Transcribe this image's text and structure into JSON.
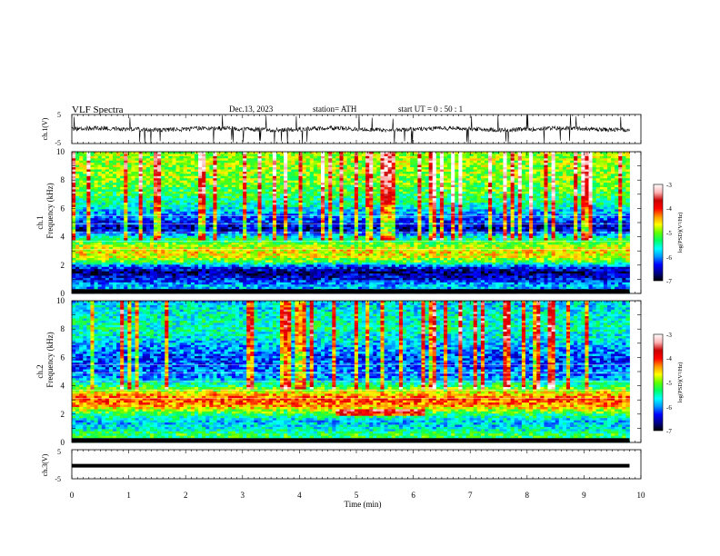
{
  "header": {
    "title": "VLF  Spectra",
    "date": "Dec.13, 2023",
    "station": "station= ATH",
    "start": "start  UT  =    0  : 50 : 1"
  },
  "colors": {
    "colormap": [
      "#000000",
      "#00008c",
      "#0000ff",
      "#0096ff",
      "#00ffff",
      "#00ff64",
      "#64ff00",
      "#ffff00",
      "#ff9600",
      "#ff0000",
      "#c80000",
      "#ffb4b4",
      "#ffffff"
    ],
    "trace": "#000000",
    "frame": "#000000"
  },
  "chart_data": [
    {
      "type": "line",
      "ylabel": "ch.1(V)",
      "xlim": [
        0,
        10
      ],
      "ylim": [
        -5,
        5
      ],
      "yticks": [
        "5",
        "-5"
      ],
      "trace_end_min": 9.8,
      "baseline": 0,
      "noise_amplitude": 1.5,
      "spike_amplitude": 4.5
    },
    {
      "type": "heatmap",
      "ylabel": "Frequency  (kHz)",
      "channel": "ch.1",
      "xlim": [
        0,
        10
      ],
      "ylim": [
        0,
        10
      ],
      "yticks": [
        "0",
        "2",
        "4",
        "6",
        "8",
        "10"
      ],
      "data_end_min": 9.8,
      "colorbar": {
        "label": "log(PSD)(V²/Hz)",
        "range": [
          -7,
          -3
        ],
        "ticks": [
          "-3",
          "-4",
          "-5",
          "-6",
          "-7"
        ]
      },
      "psd_profile_khz": [
        [
          0,
          -6.3
        ],
        [
          0.5,
          -5.8
        ],
        [
          1.0,
          -6.4
        ],
        [
          1.5,
          -6.7
        ],
        [
          1.9,
          -6.2
        ],
        [
          2.2,
          -5.2
        ],
        [
          2.6,
          -4.7
        ],
        [
          3.0,
          -4.6
        ],
        [
          3.5,
          -5.0
        ],
        [
          4.0,
          -5.6
        ],
        [
          4.5,
          -6.6
        ],
        [
          5.0,
          -6.3
        ],
        [
          6.0,
          -5.7
        ],
        [
          7.0,
          -5.2
        ],
        [
          8.0,
          -5.0
        ],
        [
          9.0,
          -4.9
        ],
        [
          10.0,
          -4.9
        ]
      ]
    },
    {
      "type": "heatmap",
      "ylabel": "Frequency  (kHz)",
      "channel": "ch.2",
      "xlim": [
        0,
        10
      ],
      "ylim": [
        0,
        10
      ],
      "yticks": [
        "0",
        "2",
        "4",
        "6",
        "8",
        "10"
      ],
      "data_end_min": 9.8,
      "colorbar": {
        "label": "log(PSD)(V²/Hz)",
        "range": [
          -7,
          -3
        ],
        "ticks": [
          "-3",
          "-4",
          "-5",
          "-6",
          "-7"
        ]
      },
      "psd_profile_khz": [
        [
          0,
          -5.6
        ],
        [
          0.5,
          -5.2
        ],
        [
          1.0,
          -5.7
        ],
        [
          1.5,
          -5.8
        ],
        [
          2.0,
          -5.3
        ],
        [
          2.5,
          -4.5
        ],
        [
          3.0,
          -4.1
        ],
        [
          3.5,
          -4.6
        ],
        [
          4.0,
          -5.3
        ],
        [
          4.5,
          -5.9
        ],
        [
          5.0,
          -6.1
        ],
        [
          6.0,
          -6.2
        ],
        [
          7.0,
          -5.8
        ],
        [
          8.0,
          -5.5
        ],
        [
          9.0,
          -5.6
        ],
        [
          10.0,
          -5.8
        ]
      ]
    },
    {
      "type": "line",
      "ylabel": "ch.3(V)",
      "xlabel": "Time  (min)",
      "xlim": [
        0,
        10
      ],
      "ylim": [
        -5,
        5
      ],
      "xticks": [
        "0",
        "1",
        "2",
        "3",
        "4",
        "5",
        "6",
        "7",
        "8",
        "9",
        "10"
      ],
      "yticks": [
        "5",
        "-5"
      ],
      "trace_end_min": 9.8,
      "baseline": -0.5,
      "noise_amplitude": 0
    }
  ]
}
